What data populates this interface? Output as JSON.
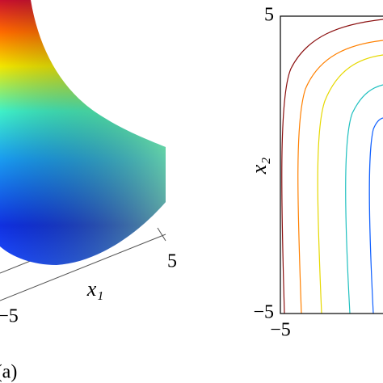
{
  "chart_data": [
    {
      "type": "surface",
      "xlabel": "x₁",
      "xticks": [
        {
          "value": -5,
          "label": "−5"
        },
        5
      ],
      "panel_label": "(a)"
    },
    {
      "type": "contour",
      "ylabel": "x₂",
      "xlim": [
        -5,
        5
      ],
      "ylim": [
        -5,
        5
      ],
      "xticks": [
        {
          "value": -5,
          "label": "−5"
        }
      ],
      "yticks": [
        {
          "value": -5,
          "label": "−5"
        },
        5
      ]
    }
  ]
}
